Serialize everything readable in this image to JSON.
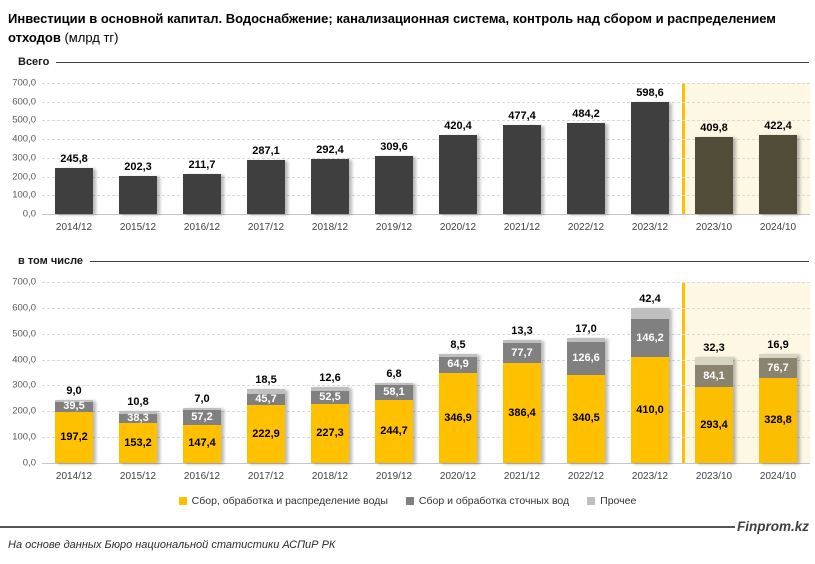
{
  "page": {
    "title_bold": "Инвестиции в основной капитал. Водоснабжение; канализационная система, контроль над сбором и распределением отходов",
    "title_unit": " (млрд тг)"
  },
  "chart_data": [
    {
      "type": "bar",
      "title": "Всего",
      "categories": [
        "2014/12",
        "2015/12",
        "2016/12",
        "2017/12",
        "2018/12",
        "2019/12",
        "2020/12",
        "2021/12",
        "2022/12",
        "2023/12",
        "2023/10",
        "2024/10"
      ],
      "values": [
        245.8,
        202.3,
        211.7,
        287.1,
        292.4,
        309.6,
        420.4,
        477.4,
        484.2,
        598.6,
        409.8,
        422.4
      ],
      "ylim": [
        0,
        700
      ],
      "ytick_step": 100,
      "grid": true,
      "highlight_from_index": 10,
      "bar_color": "#3f3f3f",
      "highlight_bar_color": "#514C38",
      "highlight_bg": "#FDF7E4",
      "separator_color": "#FFC000"
    },
    {
      "type": "stacked-bar",
      "title": "в том числе",
      "categories": [
        "2014/12",
        "2015/12",
        "2016/12",
        "2017/12",
        "2018/12",
        "2019/12",
        "2020/12",
        "2021/12",
        "2022/12",
        "2023/12",
        "2023/10",
        "2024/10"
      ],
      "series": [
        {
          "name": "Сбор, обработка и распределение воды",
          "color": "#FFC000",
          "highlight_color": "#FBBE00",
          "label_inside": true,
          "label_color": "#000000",
          "values": [
            197.2,
            153.2,
            147.4,
            222.9,
            227.3,
            244.7,
            346.9,
            386.4,
            340.5,
            410.0,
            293.4,
            328.8
          ]
        },
        {
          "name": "Сбор и обработка сточных вод",
          "color": "#808080",
          "highlight_color": "#8A8370",
          "label_inside": true,
          "label_color": "#ffffff",
          "values": [
            39.5,
            38.3,
            57.2,
            45.7,
            52.5,
            58.1,
            64.9,
            77.7,
            126.6,
            146.2,
            84.1,
            76.7
          ]
        },
        {
          "name": "Прочее",
          "color": "#BFBFBF",
          "highlight_color": "#D8D4C2",
          "label_inside": false,
          "label_above": true,
          "label_color": "#000000",
          "values": [
            9.0,
            10.8,
            7.0,
            18.5,
            12.6,
            6.8,
            8.5,
            13.3,
            17.0,
            42.4,
            32.3,
            16.9
          ]
        }
      ],
      "ylim": [
        0,
        700
      ],
      "ytick_step": 100,
      "grid": true,
      "highlight_from_index": 10,
      "highlight_bg": "#FDF7E4",
      "separator_color": "#FFC000"
    }
  ],
  "legend": {
    "position": "bottom-center",
    "items": [
      {
        "label": "Сбор, обработка и распределение воды",
        "color": "#FFC000"
      },
      {
        "label": "Сбор и обработка сточных вод",
        "color": "#808080"
      },
      {
        "label": "Прочее",
        "color": "#BFBFBF"
      }
    ]
  },
  "footer": {
    "brand": "Finprom.kz",
    "source": "На основе данных Бюро национальной статистики АСПиР РК"
  }
}
